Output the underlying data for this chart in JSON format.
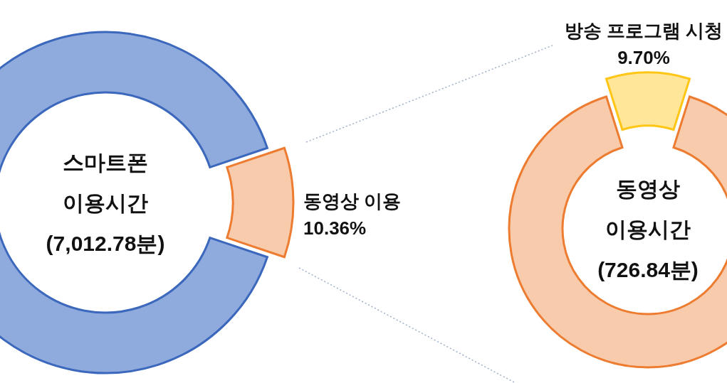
{
  "chart_data": [
    {
      "type": "donut",
      "categories": [
        "동영상 이용",
        null
      ],
      "values": [
        10.36,
        89.64
      ],
      "colors": [
        "#f8cbad",
        "#8faadc"
      ],
      "value_labels": [
        "10.36%",
        null
      ],
      "annotations": [
        "스마트폰",
        "이용시간",
        "(7,012.78분)"
      ]
    },
    {
      "type": "donut",
      "categories": [
        "방송 프로그램 시청",
        null
      ],
      "values": [
        9.7,
        90.3
      ],
      "colors": [
        "#ffe699",
        "#f8cbad"
      ],
      "value_labels": [
        "9.70%",
        null
      ],
      "annotations": [
        "동영상",
        "이용시간",
        "(726.84분)"
      ]
    }
  ]
}
